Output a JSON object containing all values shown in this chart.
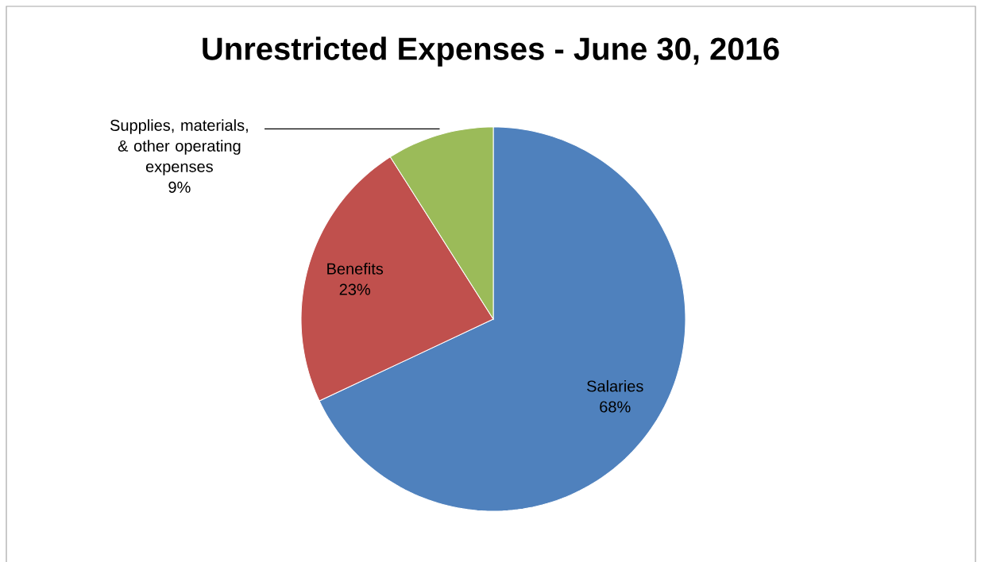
{
  "chart_data": {
    "type": "pie",
    "title": "Unrestricted Expenses - June 30, 2016",
    "categories": [
      "Salaries",
      "Benefits",
      "Supplies, materials, & other operating expenses"
    ],
    "values": [
      68,
      23,
      9
    ],
    "value_labels": [
      "68%",
      "23%",
      "9%"
    ],
    "colors": [
      "#4f81bd",
      "#c0504d",
      "#9bbb59"
    ]
  }
}
